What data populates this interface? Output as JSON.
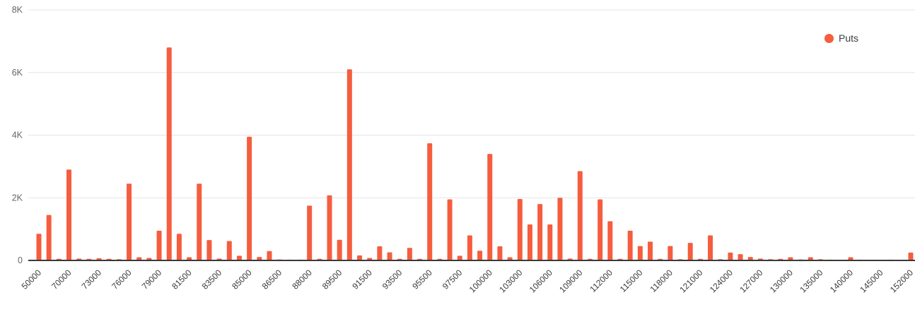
{
  "legend": {
    "label": "Puts",
    "color": "#F55D3E"
  },
  "chart_data": {
    "type": "bar",
    "title": "",
    "xlabel": "",
    "ylabel": "",
    "series_name": "Puts",
    "bar_color": "#F55D3E",
    "grid": true,
    "legend_position": "top-right",
    "ylim": [
      0,
      8000
    ],
    "y_ticks": [
      {
        "value": 0,
        "label": "0"
      },
      {
        "value": 2000,
        "label": "2K"
      },
      {
        "value": 4000,
        "label": "4K"
      },
      {
        "value": 6000,
        "label": "6K"
      },
      {
        "value": 8000,
        "label": "8K"
      }
    ],
    "bars": [
      {
        "label": "50000",
        "value": 850
      },
      {
        "label": "",
        "value": 1450
      },
      {
        "label": "",
        "value": 50
      },
      {
        "label": "70000",
        "value": 2900
      },
      {
        "label": "",
        "value": 60
      },
      {
        "label": "",
        "value": 50
      },
      {
        "label": "73000",
        "value": 70
      },
      {
        "label": "",
        "value": 50
      },
      {
        "label": "",
        "value": 40
      },
      {
        "label": "76000",
        "value": 2450
      },
      {
        "label": "",
        "value": 100
      },
      {
        "label": "",
        "value": 80
      },
      {
        "label": "79000",
        "value": 950
      },
      {
        "label": "",
        "value": 6800
      },
      {
        "label": "",
        "value": 850
      },
      {
        "label": "81500",
        "value": 100
      },
      {
        "label": "",
        "value": 2450
      },
      {
        "label": "",
        "value": 650
      },
      {
        "label": "83500",
        "value": 60
      },
      {
        "label": "",
        "value": 620
      },
      {
        "label": "",
        "value": 150
      },
      {
        "label": "85000",
        "value": 3950
      },
      {
        "label": "",
        "value": 110
      },
      {
        "label": "",
        "value": 300
      },
      {
        "label": "86500",
        "value": 30
      },
      {
        "label": "",
        "value": 25
      },
      {
        "label": "",
        "value": 25
      },
      {
        "label": "88000",
        "value": 1750
      },
      {
        "label": "",
        "value": 50
      },
      {
        "label": "",
        "value": 2080
      },
      {
        "label": "89500",
        "value": 660
      },
      {
        "label": "",
        "value": 6100
      },
      {
        "label": "",
        "value": 160
      },
      {
        "label": "91500",
        "value": 80
      },
      {
        "label": "",
        "value": 450
      },
      {
        "label": "",
        "value": 260
      },
      {
        "label": "93500",
        "value": 50
      },
      {
        "label": "",
        "value": 400
      },
      {
        "label": "",
        "value": 50
      },
      {
        "label": "95500",
        "value": 3740
      },
      {
        "label": "",
        "value": 50
      },
      {
        "label": "",
        "value": 1950
      },
      {
        "label": "97500",
        "value": 150
      },
      {
        "label": "",
        "value": 800
      },
      {
        "label": "",
        "value": 310
      },
      {
        "label": "100000",
        "value": 3400
      },
      {
        "label": "",
        "value": 450
      },
      {
        "label": "",
        "value": 100
      },
      {
        "label": "103000",
        "value": 1960
      },
      {
        "label": "",
        "value": 1150
      },
      {
        "label": "",
        "value": 1800
      },
      {
        "label": "106000",
        "value": 1150
      },
      {
        "label": "",
        "value": 2000
      },
      {
        "label": "",
        "value": 60
      },
      {
        "label": "109000",
        "value": 2850
      },
      {
        "label": "",
        "value": 50
      },
      {
        "label": "",
        "value": 1950
      },
      {
        "label": "112000",
        "value": 1250
      },
      {
        "label": "",
        "value": 50
      },
      {
        "label": "",
        "value": 950
      },
      {
        "label": "115000",
        "value": 460
      },
      {
        "label": "",
        "value": 600
      },
      {
        "label": "",
        "value": 50
      },
      {
        "label": "118000",
        "value": 460
      },
      {
        "label": "",
        "value": 40
      },
      {
        "label": "",
        "value": 560
      },
      {
        "label": "121000",
        "value": 50
      },
      {
        "label": "",
        "value": 800
      },
      {
        "label": "",
        "value": 40
      },
      {
        "label": "124000",
        "value": 250
      },
      {
        "label": "",
        "value": 200
      },
      {
        "label": "",
        "value": 110
      },
      {
        "label": "127000",
        "value": 60
      },
      {
        "label": "",
        "value": 40
      },
      {
        "label": "",
        "value": 50
      },
      {
        "label": "130000",
        "value": 100
      },
      {
        "label": "",
        "value": 30
      },
      {
        "label": "",
        "value": 100
      },
      {
        "label": "135000",
        "value": 40
      },
      {
        "label": "",
        "value": 25
      },
      {
        "label": "",
        "value": 20
      },
      {
        "label": "140000",
        "value": 100
      },
      {
        "label": "",
        "value": 25
      },
      {
        "label": "",
        "value": 20
      },
      {
        "label": "145000",
        "value": 20
      },
      {
        "label": "",
        "value": 25
      },
      {
        "label": "",
        "value": 20
      },
      {
        "label": "152000",
        "value": 250
      }
    ]
  }
}
